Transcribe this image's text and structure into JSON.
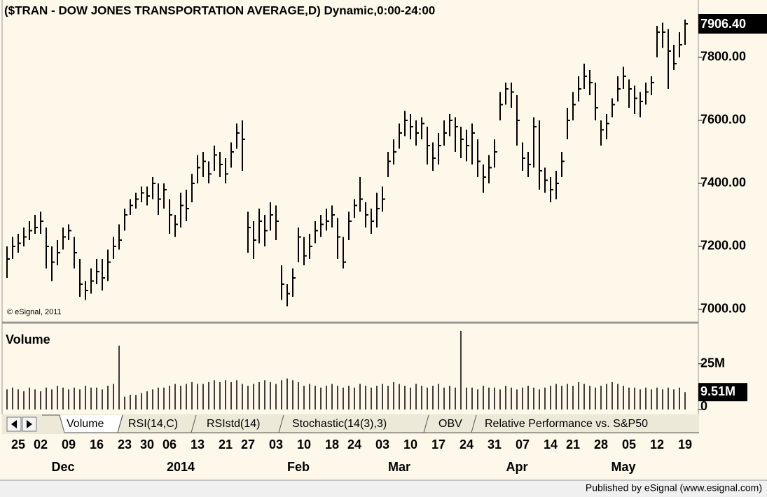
{
  "chart_data": {
    "type": "ohlc",
    "title": "($TRAN - DOW JONES TRANSPORTATION AVERAGE,D) Dynamic,0:00-24:00",
    "copyright": "© eSignal, 2011",
    "volume_title": "Volume",
    "footer": "Published by eSignal (www.esignal.com)",
    "tabs": [
      "Volume",
      "RSI(14,C)",
      "RSIstd(14)",
      "Stochastic(14(3),3)",
      "OBV",
      "Relative Performance vs. S&P50"
    ],
    "ylim": [
      6960,
      7971
    ],
    "yticks": [
      {
        "value": 7000,
        "label": "7000.00"
      },
      {
        "value": 7200,
        "label": "7200.00"
      },
      {
        "value": 7400,
        "label": "7400.00"
      },
      {
        "value": 7600,
        "label": "7600.00"
      },
      {
        "value": 7800,
        "label": "7800.00"
      }
    ],
    "last_close_label": "7906.40",
    "y2lim": [
      0,
      46
    ],
    "y2ticks": [
      0,
      {
        "value": 25,
        "label": "25M"
      }
    ],
    "last_volume_label": "9.51M",
    "xlim": [
      -2,
      124
    ],
    "xticks": [
      {
        "value": 2,
        "label": "25"
      },
      {
        "value": 6,
        "label": "02"
      },
      {
        "value": 11,
        "label": "09"
      },
      {
        "value": 16,
        "label": "16"
      },
      {
        "value": 21,
        "label": "23"
      },
      {
        "value": 25,
        "label": "30"
      },
      {
        "value": 29,
        "label": "06"
      },
      {
        "value": 34,
        "label": "13"
      },
      {
        "value": 39,
        "label": "21"
      },
      {
        "value": 43,
        "label": "27"
      },
      {
        "value": 48,
        "label": "03"
      },
      {
        "value": 53,
        "label": "10"
      },
      {
        "value": 58,
        "label": "18"
      },
      {
        "value": 62,
        "label": "24"
      },
      {
        "value": 67,
        "label": "03"
      },
      {
        "value": 72,
        "label": "10"
      },
      {
        "value": 77,
        "label": "17"
      },
      {
        "value": 82,
        "label": "24"
      },
      {
        "value": 87,
        "label": "31"
      },
      {
        "value": 92,
        "label": "07"
      },
      {
        "value": 97,
        "label": "14"
      },
      {
        "value": 101,
        "label": "21"
      },
      {
        "value": 106,
        "label": "28"
      },
      {
        "value": 111,
        "label": "05"
      },
      {
        "value": 116,
        "label": "12"
      },
      {
        "value": 121,
        "label": "19"
      }
    ],
    "xticks_major": [
      {
        "value": 10,
        "label": "Dec"
      },
      {
        "value": 31,
        "label": "2014"
      },
      {
        "value": 52,
        "label": "Feb"
      },
      {
        "value": 70,
        "label": "Mar"
      },
      {
        "value": 91,
        "label": "Apr"
      },
      {
        "value": 110,
        "label": "May"
      }
    ],
    "color": "#000000",
    "high": [
      7200,
      7230,
      7240,
      7260,
      7280,
      7300,
      7310,
      7260,
      7200,
      7220,
      7260,
      7270,
      7230,
      7160,
      7090,
      7130,
      7160,
      7160,
      7190,
      7230,
      7270,
      7320,
      7350,
      7370,
      7390,
      7390,
      7420,
      7400,
      7400,
      7350,
      7300,
      7370,
      7380,
      7430,
      7490,
      7500,
      7470,
      7520,
      7500,
      7480,
      7530,
      7590,
      7600,
      7310,
      7280,
      7320,
      7300,
      7340,
      7330,
      7140,
      7080,
      7130,
      7260,
      7230,
      7240,
      7280,
      7300,
      7320,
      7330,
      7290,
      7230,
      7310,
      7350,
      7420,
      7340,
      7320,
      7370,
      7390,
      7500,
      7540,
      7590,
      7630,
      7620,
      7600,
      7610,
      7580,
      7530,
      7560,
      7600,
      7620,
      7610,
      7580,
      7570,
      7590,
      7540,
      7460,
      7490,
      7540,
      7690,
      7720,
      7720,
      7680,
      7530,
      7500,
      7610,
      7600,
      7450,
      7420,
      7440,
      7500,
      7640,
      7690,
      7740,
      7780,
      7760,
      7720,
      7600,
      7620,
      7670,
      7740,
      7770,
      7730,
      7710,
      7690,
      7720,
      7740,
      7900,
      7910,
      7890,
      7840,
      7880,
      7920
    ],
    "low": [
      7100,
      7160,
      7180,
      7200,
      7220,
      7240,
      7240,
      7130,
      7090,
      7140,
      7190,
      7220,
      7130,
      7040,
      7030,
      7050,
      7080,
      7060,
      7090,
      7160,
      7190,
      7250,
      7300,
      7320,
      7340,
      7330,
      7350,
      7300,
      7320,
      7240,
      7230,
      7260,
      7280,
      7340,
      7400,
      7420,
      7400,
      7440,
      7420,
      7400,
      7450,
      7510,
      7440,
      7180,
      7160,
      7210,
      7200,
      7250,
      7220,
      7030,
      7010,
      7040,
      7150,
      7140,
      7160,
      7210,
      7230,
      7250,
      7260,
      7160,
      7130,
      7220,
      7290,
      7310,
      7260,
      7240,
      7260,
      7310,
      7420,
      7460,
      7510,
      7550,
      7540,
      7520,
      7540,
      7460,
      7440,
      7460,
      7520,
      7550,
      7500,
      7480,
      7470,
      7460,
      7420,
      7370,
      7400,
      7450,
      7600,
      7650,
      7640,
      7520,
      7440,
      7420,
      7450,
      7380,
      7370,
      7340,
      7350,
      7420,
      7540,
      7600,
      7660,
      7700,
      7680,
      7600,
      7520,
      7540,
      7610,
      7660,
      7700,
      7640,
      7620,
      7610,
      7650,
      7680,
      7800,
      7830,
      7700,
      7760,
      7800,
      7840
    ],
    "close": [
      7160,
      7200,
      7210,
      7230,
      7250,
      7260,
      7280,
      7200,
      7150,
      7180,
      7230,
      7250,
      7180,
      7080,
      7060,
      7090,
      7120,
      7100,
      7150,
      7200,
      7220,
      7300,
      7330,
      7350,
      7370,
      7360,
      7400,
      7350,
      7380,
      7300,
      7270,
      7330,
      7320,
      7400,
      7450,
      7470,
      7430,
      7490,
      7460,
      7430,
      7500,
      7560,
      7540,
      7260,
      7220,
      7280,
      7250,
      7300,
      7280,
      7080,
      7050,
      7100,
      7230,
      7170,
      7200,
      7250,
      7270,
      7280,
      7300,
      7230,
      7150,
      7280,
      7330,
      7350,
      7300,
      7280,
      7320,
      7350,
      7470,
      7500,
      7560,
      7600,
      7580,
      7560,
      7590,
      7520,
      7480,
      7520,
      7560,
      7600,
      7580,
      7540,
      7520,
      7560,
      7470,
      7420,
      7450,
      7500,
      7650,
      7700,
      7690,
      7600,
      7480,
      7460,
      7580,
      7440,
      7410,
      7380,
      7400,
      7470,
      7600,
      7650,
      7700,
      7740,
      7720,
      7640,
      7570,
      7590,
      7650,
      7700,
      7740,
      7700,
      7670,
      7660,
      7690,
      7720,
      7880,
      7880,
      7820,
      7780,
      7840,
      7906.4
    ],
    "volume": [
      11,
      12,
      11,
      10,
      12,
      11,
      10,
      12,
      11,
      13,
      12,
      11,
      12,
      11,
      13,
      12,
      12,
      11,
      13,
      14,
      35,
      7,
      8,
      8,
      9,
      10,
      11,
      12,
      12,
      13,
      14,
      13,
      14,
      15,
      14,
      14,
      15,
      16,
      15,
      16,
      15,
      16,
      14,
      13,
      14,
      15,
      16,
      15,
      14,
      16,
      17,
      16,
      15,
      13,
      14,
      13,
      12,
      13,
      14,
      13,
      12,
      13,
      12,
      14,
      13,
      12,
      13,
      14,
      13,
      15,
      14,
      13,
      12,
      14,
      13,
      12,
      13,
      14,
      12,
      13,
      12,
      43,
      12,
      12,
      11,
      13,
      12,
      12,
      11,
      13,
      12,
      11,
      12,
      13,
      12,
      11,
      12,
      13,
      14,
      13,
      14,
      13,
      15,
      14,
      13,
      12,
      13,
      14,
      15,
      14,
      13,
      12,
      12,
      11,
      12,
      11,
      12,
      11,
      12,
      11,
      12,
      9.51
    ]
  }
}
